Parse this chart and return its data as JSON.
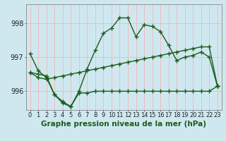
{
  "title": "Graphe pression niveau de la mer (hPa)",
  "background_color": "#cfe8f0",
  "grid_color": "#ffaaaa",
  "line_color": "#1a5c1a",
  "hours": [
    0,
    1,
    2,
    3,
    4,
    5,
    6,
    7,
    8,
    9,
    10,
    11,
    12,
    13,
    14,
    15,
    16,
    17,
    18,
    19,
    20,
    21,
    22,
    23
  ],
  "series1": [
    997.1,
    996.6,
    996.4,
    995.9,
    995.65,
    995.55,
    996.0,
    996.65,
    997.2,
    997.7,
    997.85,
    998.15,
    998.15,
    997.6,
    997.95,
    997.9,
    997.75,
    997.35,
    996.9,
    997.0,
    997.05,
    997.15,
    997.0,
    996.15
  ],
  "series2": [
    996.55,
    996.4,
    996.35,
    996.4,
    996.45,
    996.5,
    996.55,
    996.6,
    996.65,
    996.7,
    996.75,
    996.8,
    996.85,
    996.9,
    996.95,
    997.0,
    997.05,
    997.1,
    997.15,
    997.2,
    997.25,
    997.3,
    997.3,
    996.15
  ],
  "series3": [
    996.55,
    996.5,
    996.45,
    995.9,
    995.7,
    995.55,
    995.95,
    995.95,
    996.0,
    996.0,
    996.0,
    996.0,
    996.0,
    996.0,
    996.0,
    996.0,
    996.0,
    996.0,
    996.0,
    996.0,
    996.0,
    996.0,
    996.0,
    996.15
  ],
  "ylim": [
    995.45,
    998.55
  ],
  "yticks": [
    996,
    997,
    998
  ],
  "ytick_labels": [
    "996",
    "997",
    "998"
  ],
  "marker": "+",
  "markersize": 4,
  "linewidth": 1.0,
  "title_fontsize": 7.5,
  "tick_fontsize": 6,
  "ytick_fontsize": 7
}
